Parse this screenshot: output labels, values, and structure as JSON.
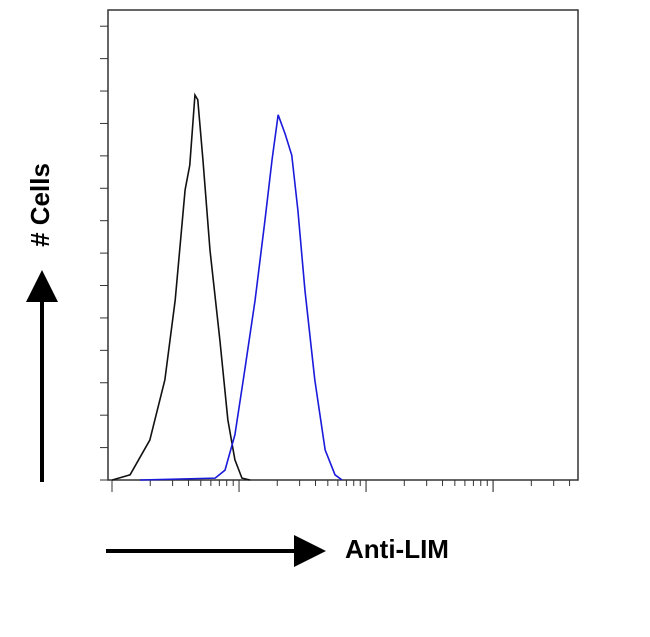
{
  "chart_data": {
    "type": "line",
    "y_label": "# Cells",
    "x_label": "Anti-LIM",
    "xlim": [
      0,
      100
    ],
    "ylim": [
      0,
      100
    ],
    "series": [
      {
        "color": "#111111",
        "x": [
          0.9,
          4.7,
          8.9,
          12.1,
          14.3,
          16.4,
          17.4,
          18.5,
          19.1,
          20.2,
          21.7,
          23.8,
          25.5,
          27.0,
          28.5,
          30.2
        ],
        "values": [
          0,
          1.1,
          8.5,
          21.3,
          38.3,
          61.7,
          67.0,
          81.9,
          80.9,
          68.1,
          48.9,
          29.8,
          12.8,
          4.3,
          0.4,
          0
        ]
      },
      {
        "color": "#1a1adb",
        "x": [
          6.8,
          22.8,
          24.9,
          27.0,
          29.1,
          31.3,
          33.4,
          34.9,
          36.2,
          37.7,
          39.1,
          40.4,
          41.9,
          44.0,
          46.2,
          48.3,
          49.8
        ],
        "values": [
          0,
          0.4,
          2.1,
          9.6,
          23.4,
          38.3,
          55.3,
          68.1,
          77.7,
          73.6,
          69.1,
          57.4,
          40.4,
          21.3,
          6.4,
          1.1,
          0
        ]
      }
    ]
  }
}
